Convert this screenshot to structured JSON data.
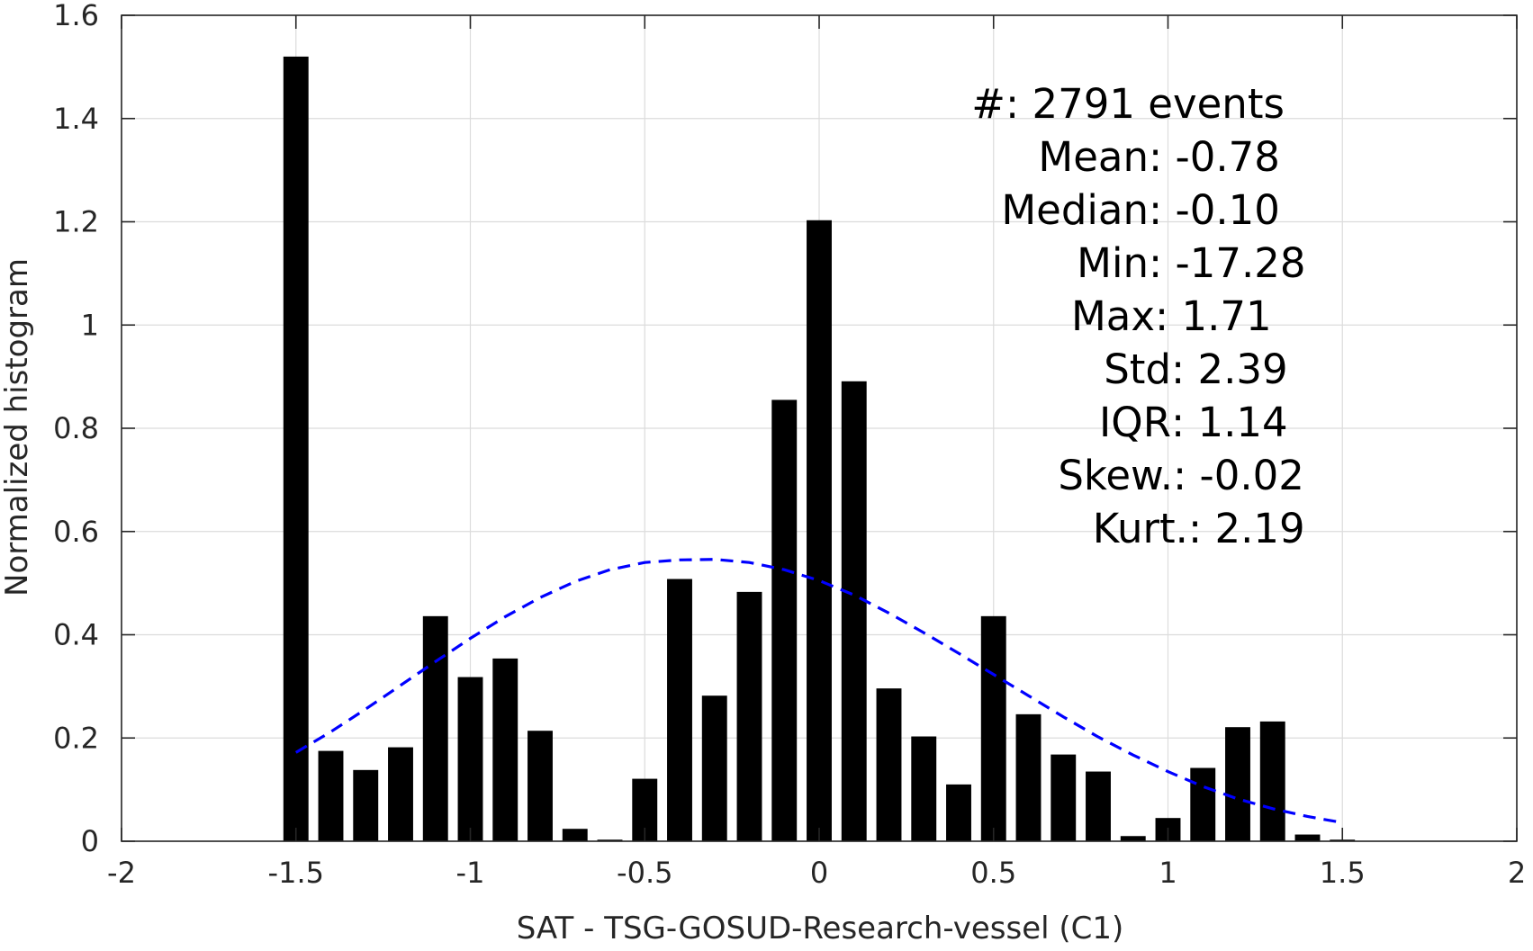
{
  "chart_data": {
    "type": "bar",
    "xlabel": "SAT - TSG-GOSUD-Research-vessel (C1)",
    "ylabel": "Normalized histogram",
    "xlim": [
      -2,
      2
    ],
    "ylim": [
      0,
      1.6
    ],
    "grid": true,
    "xticks": [
      "-2",
      "-1.5",
      "-1",
      "-0.5",
      "0",
      "0.5",
      "1",
      "1.5",
      "2"
    ],
    "yticks": [
      "0",
      "0.2",
      "0.4",
      "0.6",
      "0.8",
      "1",
      "1.2",
      "1.4",
      "1.6"
    ],
    "bar_color": "#000000",
    "bars": {
      "x": [
        -1.5,
        -1.4,
        -1.3,
        -1.2,
        -1.1,
        -1.0,
        -0.9,
        -0.8,
        -0.7,
        -0.6,
        -0.5,
        -0.4,
        -0.3,
        -0.2,
        -0.1,
        0.0,
        0.1,
        0.2,
        0.3,
        0.4,
        0.5,
        0.6,
        0.7,
        0.8,
        0.9,
        1.0,
        1.1,
        1.2,
        1.3,
        1.4,
        1.5
      ],
      "values": [
        1.52,
        0.175,
        0.138,
        0.182,
        0.436,
        0.318,
        0.354,
        0.214,
        0.024,
        0.003,
        0.121,
        0.508,
        0.282,
        0.483,
        0.855,
        1.203,
        0.891,
        0.296,
        0.203,
        0.11,
        0.436,
        0.246,
        0.168,
        0.135,
        0.01,
        0.045,
        0.142,
        0.221,
        0.232,
        0.013,
        0.003
      ]
    },
    "fit_curve": {
      "style": "dashed",
      "color": "#0000ff",
      "x": [
        -1.5,
        -1.4,
        -1.3,
        -1.2,
        -1.1,
        -1.0,
        -0.9,
        -0.8,
        -0.7,
        -0.6,
        -0.5,
        -0.4,
        -0.3,
        -0.2,
        -0.1,
        0.0,
        0.1,
        0.2,
        0.3,
        0.4,
        0.5,
        0.6,
        0.7,
        0.8,
        0.9,
        1.0,
        1.1,
        1.2,
        1.3,
        1.4,
        1.5
      ],
      "y": [
        0.172,
        0.212,
        0.256,
        0.302,
        0.348,
        0.393,
        0.435,
        0.472,
        0.503,
        0.526,
        0.54,
        0.545,
        0.546,
        0.54,
        0.526,
        0.505,
        0.477,
        0.442,
        0.404,
        0.364,
        0.323,
        0.282,
        0.241,
        0.202,
        0.167,
        0.135,
        0.106,
        0.082,
        0.063,
        0.048,
        0.036
      ]
    },
    "stats": [
      {
        "label": "#  ",
        "value": ": 2791 events"
      },
      {
        "label": "Mean ",
        "value": ": -0.78"
      },
      {
        "label": "Median ",
        "value": ": -0.10"
      },
      {
        "label": "Min ",
        "value": ": -17.28"
      },
      {
        "label": "Max ",
        "value": ": 1.71"
      },
      {
        "label": "Std ",
        "value": ": 2.39"
      },
      {
        "label": "IQR ",
        "value": ": 1.14"
      },
      {
        "label": "Skew. ",
        "value": ": -0.02"
      },
      {
        "label": "Kurt. ",
        "value": ": 2.19"
      }
    ]
  }
}
